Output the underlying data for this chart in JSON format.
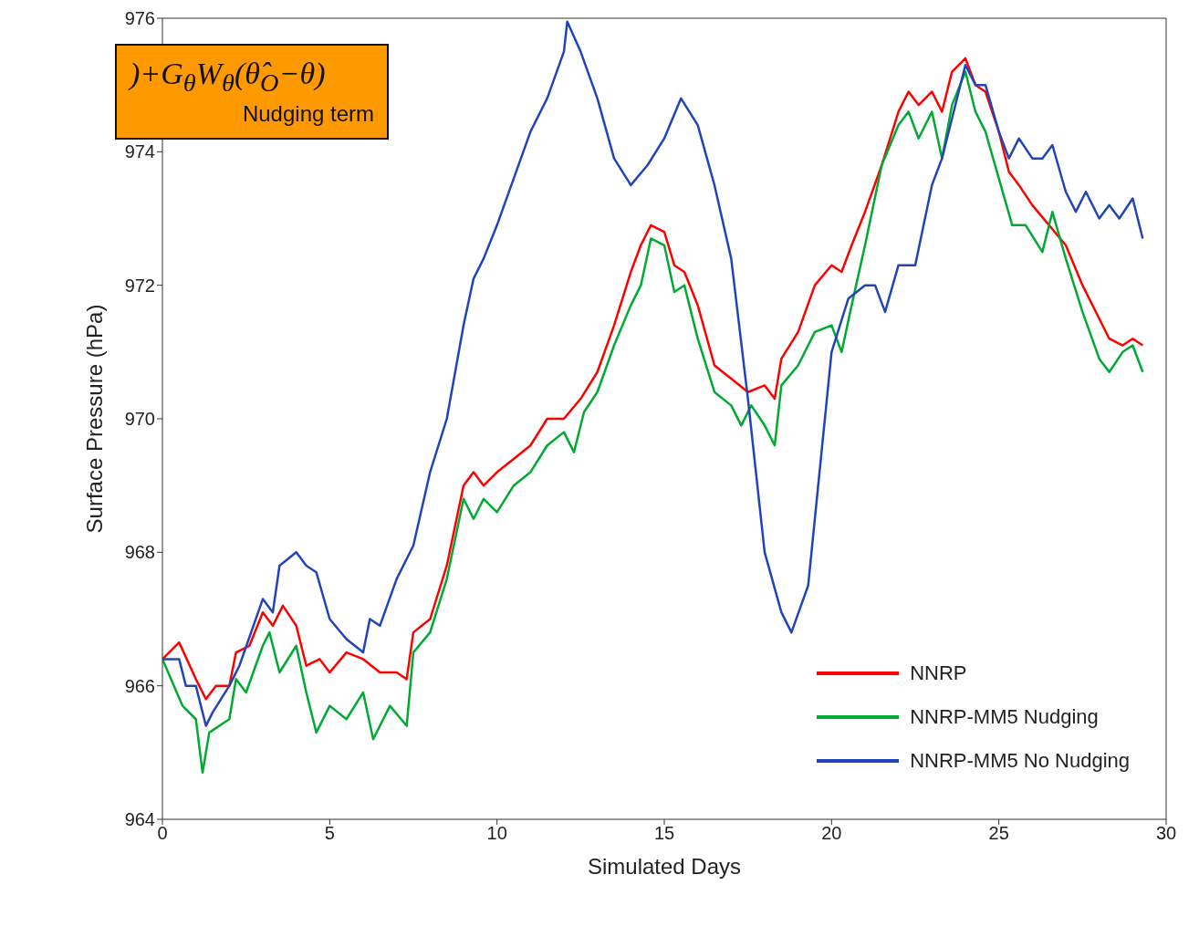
{
  "chart_data": {
    "type": "line",
    "xlabel": "Simulated Days",
    "ylabel": "Surface Pressure (hPa)",
    "xlim": [
      0,
      30
    ],
    "xticks": [
      0,
      5,
      10,
      15,
      20,
      25,
      30
    ],
    "ylim": [
      964,
      976
    ],
    "yticks": [
      964,
      966,
      968,
      970,
      972,
      974,
      976
    ],
    "legend": "bottom right",
    "marker": "none",
    "line_style": "solid",
    "annotations": [
      ")+G$_{θ}$W$_{θ}$(θ̂$_{O}$−θ)",
      "Nudging term"
    ],
    "series": [
      {
        "name": "NNRP",
        "color": "#ff0000",
        "x": [
          0,
          0.5,
          1,
          1.3,
          1.6,
          2,
          2.2,
          2.6,
          3,
          3.3,
          3.6,
          4,
          4.3,
          4.7,
          5,
          5.5,
          6,
          6.5,
          7,
          7.3,
          7.5,
          8,
          8.5,
          9,
          9.3,
          9.6,
          10,
          10.5,
          11,
          11.5,
          12,
          12.5,
          13,
          13.5,
          14,
          14.3,
          14.6,
          15,
          15.3,
          15.6,
          16,
          16.5,
          17,
          17.5,
          18,
          18.3,
          18.5,
          19,
          19.5,
          20,
          20.3,
          20.6,
          21,
          21.5,
          22,
          22.3,
          22.6,
          23,
          23.3,
          23.6,
          24,
          24.3,
          24.6,
          25,
          25.3,
          25.6,
          26,
          26.5,
          27,
          27.5,
          28,
          28.3,
          28.7,
          29,
          29.3
        ],
        "values": [
          966.4,
          966.65,
          966.1,
          965.8,
          966.0,
          966.0,
          966.5,
          966.6,
          967.1,
          966.9,
          967.2,
          966.9,
          966.3,
          966.4,
          966.2,
          966.5,
          966.4,
          966.2,
          966.2,
          966.1,
          966.8,
          967.0,
          967.8,
          969.0,
          969.2,
          969.0,
          969.2,
          969.4,
          969.6,
          970.0,
          970.0,
          970.3,
          970.7,
          971.4,
          972.2,
          972.6,
          972.9,
          972.8,
          972.3,
          972.2,
          971.7,
          970.8,
          970.6,
          970.4,
          970.5,
          970.3,
          970.9,
          971.3,
          972.0,
          972.3,
          972.2,
          972.6,
          973.1,
          973.8,
          974.6,
          974.9,
          974.7,
          974.9,
          974.6,
          975.2,
          975.4,
          975.0,
          974.9,
          974.3,
          973.7,
          973.5,
          973.2,
          972.9,
          972.6,
          972.0,
          971.5,
          971.2,
          971.1,
          971.2,
          971.1
        ]
      },
      {
        "name": "NNRP-MM5 Nudging",
        "color": "#00aa33",
        "x": [
          0,
          0.6,
          1,
          1.2,
          1.4,
          2,
          2.2,
          2.5,
          3,
          3.2,
          3.5,
          4,
          4.3,
          4.6,
          5,
          5.5,
          6,
          6.3,
          6.8,
          7.3,
          7.5,
          8,
          8.5,
          9,
          9.3,
          9.6,
          10,
          10.5,
          11,
          11.5,
          12,
          12.3,
          12.6,
          13,
          13.5,
          14,
          14.3,
          14.6,
          15,
          15.3,
          15.6,
          16,
          16.5,
          17,
          17.3,
          17.6,
          18,
          18.3,
          18.5,
          19,
          19.5,
          20,
          20.3,
          20.6,
          21,
          21.5,
          22,
          22.3,
          22.6,
          23,
          23.3,
          23.6,
          24,
          24.3,
          24.6,
          25,
          25.4,
          25.8,
          26.3,
          26.6,
          27,
          27.5,
          28,
          28.3,
          28.7,
          29,
          29.3
        ],
        "values": [
          966.4,
          965.7,
          965.5,
          964.7,
          965.3,
          965.5,
          966.1,
          965.9,
          966.6,
          966.8,
          966.2,
          966.6,
          965.9,
          965.3,
          965.7,
          965.5,
          965.9,
          965.2,
          965.7,
          965.4,
          966.5,
          966.8,
          967.6,
          968.8,
          968.5,
          968.8,
          968.6,
          969.0,
          969.2,
          969.6,
          969.8,
          969.5,
          970.1,
          970.4,
          971.1,
          971.7,
          972.0,
          972.7,
          972.6,
          971.9,
          972.0,
          971.2,
          970.4,
          970.2,
          969.9,
          970.2,
          969.9,
          969.6,
          970.5,
          970.8,
          971.3,
          971.4,
          971.0,
          971.7,
          972.6,
          973.8,
          974.4,
          974.6,
          974.2,
          974.6,
          973.9,
          974.7,
          975.2,
          974.6,
          974.3,
          973.6,
          972.9,
          972.9,
          972.5,
          973.1,
          972.4,
          971.6,
          970.9,
          970.7,
          971.0,
          971.1,
          970.7
        ]
      },
      {
        "name": "NNRP-MM5 No Nudging",
        "color": "#2244bb",
        "x": [
          0,
          0.5,
          0.7,
          1,
          1.3,
          1.5,
          2,
          2.3,
          3,
          3.3,
          3.5,
          4,
          4.3,
          4.6,
          5,
          5.5,
          6,
          6.2,
          6.5,
          7,
          7.5,
          8,
          8.5,
          9,
          9.3,
          9.6,
          10,
          10.5,
          11,
          11.5,
          12,
          12.1,
          12.5,
          13,
          13.5,
          14,
          14.5,
          15,
          15.5,
          16,
          16.5,
          17,
          17.5,
          18,
          18.5,
          18.8,
          19.3,
          19.6,
          20,
          20.5,
          21,
          21.3,
          21.6,
          22,
          22.5,
          23,
          23.3,
          23.6,
          24,
          24.3,
          24.6,
          25,
          25.3,
          25.6,
          26,
          26.3,
          26.6,
          27,
          27.3,
          27.6,
          28,
          28.3,
          28.6,
          29,
          29.3
        ],
        "values": [
          966.4,
          966.4,
          966.0,
          966.0,
          965.4,
          965.6,
          966.0,
          966.3,
          967.3,
          967.1,
          967.8,
          968.0,
          967.8,
          967.7,
          967.0,
          966.7,
          966.5,
          967.0,
          966.9,
          967.6,
          968.1,
          969.2,
          970.0,
          971.4,
          972.1,
          972.4,
          972.9,
          973.6,
          974.3,
          974.8,
          975.5,
          975.95,
          975.5,
          974.8,
          973.9,
          973.5,
          973.8,
          974.2,
          974.8,
          974.4,
          973.5,
          972.4,
          970.3,
          968.0,
          967.1,
          966.8,
          967.5,
          969.0,
          971.0,
          971.8,
          972.0,
          972.0,
          971.6,
          972.3,
          972.3,
          973.5,
          973.9,
          974.5,
          975.3,
          975.0,
          975.0,
          974.3,
          973.9,
          974.2,
          973.9,
          973.9,
          974.1,
          973.4,
          973.1,
          973.4,
          973.0,
          973.2,
          973.0,
          973.3,
          972.7
        ]
      }
    ]
  }
}
